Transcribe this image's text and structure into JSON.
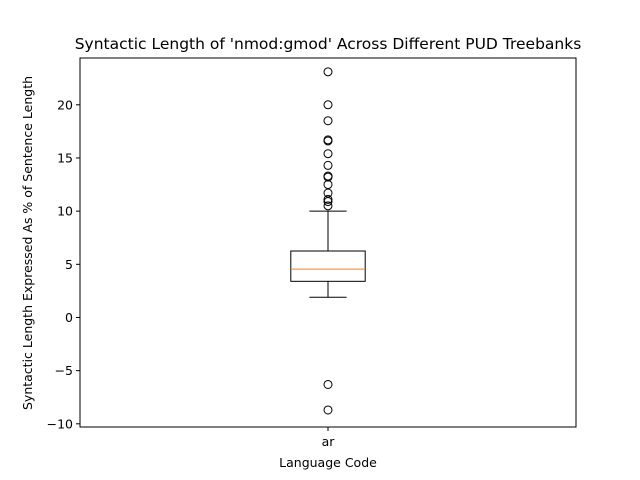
{
  "chart_data": {
    "type": "box",
    "title": "Syntactic Length of 'nmod:gmod' Across Different PUD Treebanks",
    "xlabel": "Language Code",
    "ylabel": "Syntactic Length Expressed As % of Sentence Length",
    "categories": [
      "ar"
    ],
    "ylim": [
      -10.3,
      24.4
    ],
    "yticks": [
      -10,
      -5,
      0,
      5,
      10,
      15,
      20
    ],
    "grid": false,
    "boxes": [
      {
        "category": "ar",
        "whisker_low": 1.9,
        "q1": 3.4,
        "median": 4.55,
        "q3": 6.25,
        "whisker_high": 10.0,
        "outliers": [
          23.1,
          20.0,
          18.5,
          16.7,
          16.6,
          15.4,
          14.3,
          13.3,
          13.2,
          12.5,
          11.7,
          11.1,
          10.9,
          10.5,
          -6.3,
          -8.7
        ]
      }
    ],
    "colors": {
      "box": "#000000",
      "median": "#ff7f0e",
      "outlier": "#000000"
    }
  }
}
